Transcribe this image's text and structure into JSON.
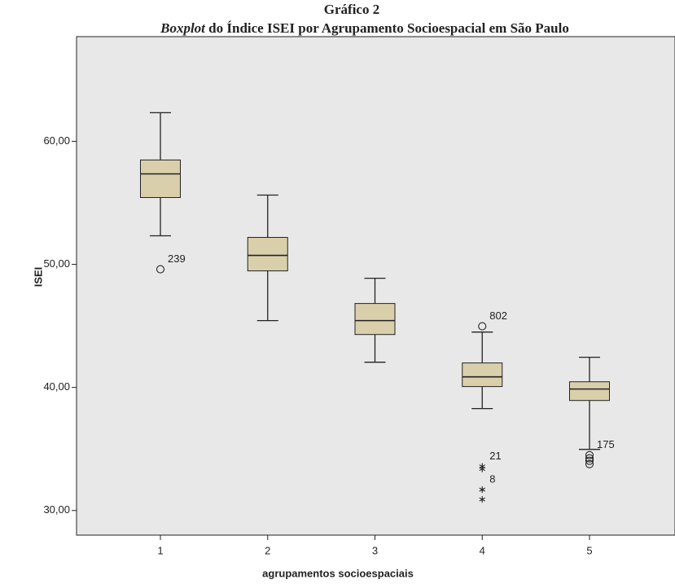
{
  "chart_data": {
    "type": "boxplot",
    "title": "Gráfico 2",
    "subtitle": [
      "Boxplot",
      "do Índice ISEI por Agrupamento Socioespacial em São Paulo"
    ],
    "xlabel": "agrupamentos socioespaciais",
    "ylabel": "ISEI",
    "categories": [
      "1",
      "2",
      "3",
      "4",
      "5"
    ],
    "boxes": [
      {
        "low": 52.32,
        "q1": 55.43,
        "median": 57.35,
        "q3": 58.48,
        "high": 62.32
      },
      {
        "low": 45.43,
        "q1": 49.47,
        "median": 50.73,
        "q3": 52.19,
        "high": 55.63
      },
      {
        "low": 42.05,
        "q1": 44.3,
        "median": 45.43,
        "q3": 46.82,
        "high": 48.87
      },
      {
        "low": 38.28,
        "q1": 40.07,
        "median": 40.86,
        "q3": 41.99,
        "high": 44.5
      },
      {
        "low": 34.97,
        "q1": 38.94,
        "median": 39.87,
        "q3": 40.46,
        "high": 42.45
      }
    ],
    "outliers": [
      {
        "category": 0,
        "value": 49.6,
        "marker": "circle",
        "label": "239"
      },
      {
        "category": 3,
        "value": 44.97,
        "marker": "circle",
        "label": "802"
      },
      {
        "category": 3,
        "value": 33.58,
        "marker": "star",
        "label": "21"
      },
      {
        "category": 3,
        "value": 33.38,
        "marker": "star"
      },
      {
        "category": 3,
        "value": 31.7,
        "marker": "star",
        "label": "8"
      },
      {
        "category": 3,
        "value": 30.9,
        "marker": "star"
      },
      {
        "category": 4,
        "value": 34.5,
        "marker": "circle",
        "label": "175"
      },
      {
        "category": 4,
        "value": 34.24,
        "marker": "circle"
      },
      {
        "category": 4,
        "value": 34.04,
        "marker": "circle"
      },
      {
        "category": 4,
        "value": 33.77,
        "marker": "circle"
      }
    ],
    "color": "#d9cfab",
    "background": "#e8e8e8",
    "ylim": [
      28,
      68.5
    ],
    "yticks": [
      {
        "value": 30,
        "label": "30,00"
      },
      {
        "value": 40,
        "label": "40,00"
      },
      {
        "value": 50,
        "label": "50,00"
      },
      {
        "value": 60,
        "label": "60,00"
      }
    ]
  }
}
